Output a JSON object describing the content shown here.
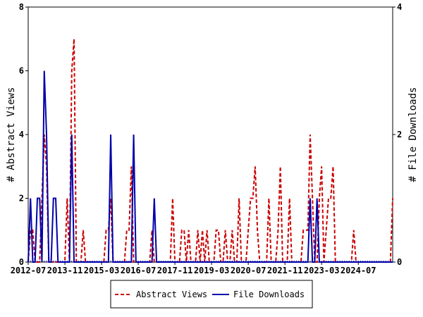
{
  "chart_data": {
    "type": "line",
    "y_label": "# Abstract Views",
    "y2_label": "# File Downloads",
    "categories": [
      "2012-07",
      null,
      null,
      null,
      null,
      null,
      null,
      null,
      null,
      null,
      null,
      null,
      null,
      null,
      null,
      null,
      "2013-11",
      null,
      null,
      null,
      null,
      null,
      null,
      null,
      null,
      null,
      null,
      null,
      null,
      null,
      null,
      null,
      "2015-03",
      null,
      null,
      null,
      null,
      null,
      null,
      null,
      null,
      null,
      null,
      null,
      null,
      null,
      null,
      null,
      "2016-07",
      null,
      null,
      null,
      null,
      null,
      null,
      null,
      null,
      null,
      null,
      null,
      null,
      null,
      null,
      null,
      "2017-11",
      null,
      null,
      null,
      null,
      null,
      null,
      null,
      null,
      null,
      null,
      null,
      null,
      null,
      null,
      null,
      "2019-03",
      null,
      null,
      null,
      null,
      null,
      null,
      null,
      null,
      null,
      null,
      null,
      null,
      null,
      null,
      null,
      "2020-07",
      null,
      null,
      null,
      null,
      null,
      null,
      null,
      null,
      null,
      null,
      null,
      null,
      null,
      null,
      null,
      "2021-11",
      null,
      null,
      null,
      null,
      null,
      null,
      null,
      null,
      null,
      null,
      null,
      null,
      null,
      null,
      null,
      "2023-03",
      null,
      null,
      null,
      null,
      null,
      null,
      null,
      null,
      null,
      null,
      null,
      null,
      null,
      null,
      null,
      "2024-07",
      null,
      null,
      null,
      null,
      null,
      null,
      null,
      null,
      null,
      null,
      null,
      null,
      null,
      null,
      null
    ],
    "series": [
      {
        "name": "Abstract Views",
        "color": "#cc0000",
        "dash": true,
        "values": [
          0,
          1,
          1,
          0,
          0,
          0,
          2,
          4,
          3,
          0,
          0,
          0,
          0,
          0,
          0,
          0,
          0,
          2,
          0,
          6,
          7,
          0,
          0,
          0,
          1,
          0,
          0,
          0,
          0,
          0,
          0,
          0,
          0,
          0,
          1,
          1,
          2,
          0,
          0,
          0,
          0,
          0,
          0,
          1,
          1,
          3,
          0,
          0,
          0,
          0,
          0,
          0,
          0,
          0,
          1,
          0,
          0,
          0,
          0,
          0,
          0,
          0,
          0,
          2,
          0,
          0,
          0,
          1,
          1,
          0,
          1,
          0,
          0,
          0,
          1,
          0,
          1,
          0,
          1,
          0,
          0,
          0,
          1,
          1,
          0,
          0,
          1,
          0,
          0,
          1,
          0,
          0,
          2,
          0,
          0,
          0,
          1,
          2,
          2,
          3,
          1,
          0,
          0,
          0,
          0,
          2,
          0,
          0,
          0,
          1,
          3,
          0,
          0,
          0,
          2,
          0,
          0,
          0,
          0,
          0,
          1,
          1,
          1,
          4,
          2,
          0,
          0,
          2,
          3,
          0,
          1,
          2,
          2,
          3,
          0,
          0,
          0,
          0,
          0,
          0,
          0,
          0,
          1,
          0,
          0,
          0,
          0,
          0,
          0,
          0,
          0,
          0,
          0,
          0,
          0,
          0,
          0,
          0,
          0,
          2
        ]
      },
      {
        "name": "File Downloads",
        "color": "#0000aa",
        "axis": "y2",
        "values": [
          0,
          1,
          0,
          0,
          1,
          1,
          0,
          3,
          2,
          0,
          0,
          1,
          1,
          0,
          0,
          0,
          0,
          0,
          0,
          2,
          0,
          0,
          0,
          0,
          0,
          0,
          0,
          0,
          0,
          0,
          0,
          0,
          0,
          0,
          0,
          0,
          2,
          0,
          0,
          0,
          0,
          0,
          0,
          0,
          0,
          0,
          2,
          0,
          0,
          0,
          0,
          0,
          0,
          0,
          0,
          1,
          0,
          0,
          0,
          0,
          0,
          0,
          0,
          0,
          0,
          0,
          0,
          0,
          0,
          0,
          0,
          0,
          0,
          0,
          0,
          0,
          0,
          0,
          0,
          0,
          0,
          0,
          0,
          0,
          0,
          0,
          0,
          0,
          0,
          0,
          0,
          0,
          0,
          0,
          0,
          0,
          0,
          0,
          0,
          0,
          0,
          0,
          0,
          0,
          0,
          0,
          0,
          0,
          0,
          0,
          0,
          0,
          0,
          0,
          0,
          0,
          0,
          0,
          0,
          0,
          0,
          0,
          0,
          1,
          0,
          0,
          1,
          0,
          0,
          0,
          0,
          0,
          0,
          0,
          0,
          0,
          0,
          0,
          0,
          0,
          0,
          0,
          0,
          0,
          0,
          0,
          0,
          0,
          0,
          0,
          0,
          0,
          0,
          0,
          0,
          0,
          0,
          0,
          0,
          0
        ]
      }
    ],
    "ylim": [
      0,
      8
    ],
    "yticks": [
      0,
      2,
      4,
      6,
      8
    ],
    "y2lim": [
      0,
      4
    ],
    "y2ticks": [
      0,
      2,
      4
    ]
  }
}
